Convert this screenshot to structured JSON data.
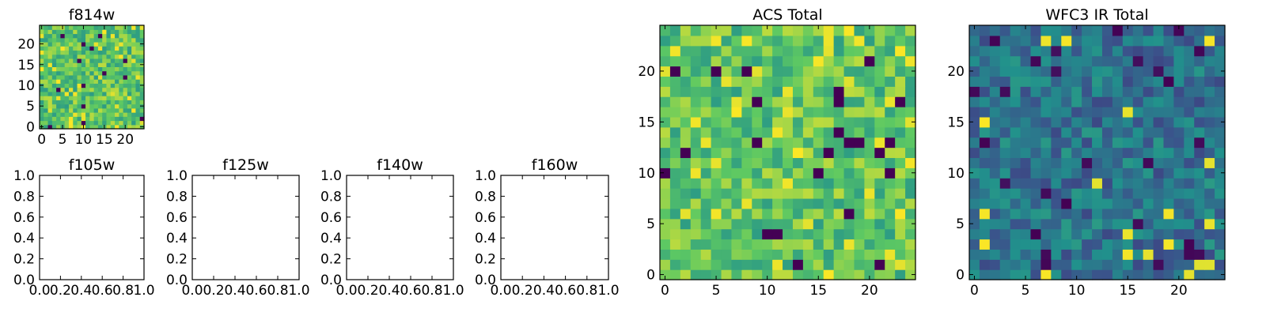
{
  "figure": {
    "background": "#ffffff",
    "heatmap_colormap": [
      "#440154",
      "#3b528b",
      "#21908c",
      "#5dc863",
      "#fde725"
    ]
  },
  "chart_data": [
    {
      "id": "f814w",
      "type": "heatmap",
      "title": "f814w",
      "grid_size": 25,
      "xlim": [
        -0.5,
        24.5
      ],
      "ylim": [
        -0.5,
        24.5
      ],
      "xticks": [
        0,
        5,
        10,
        15,
        20
      ],
      "yticks": [
        0,
        5,
        10,
        15,
        20
      ],
      "pattern": "bright",
      "seed": 814,
      "values": []
    },
    {
      "id": "f105w",
      "type": "empty",
      "title": "f105w",
      "xlim": [
        0,
        1
      ],
      "ylim": [
        0,
        1
      ],
      "xticks": [
        "0.0",
        "0.2",
        "0.4",
        "0.6",
        "0.8",
        "1.0"
      ],
      "yticks": [
        "0.0",
        "0.2",
        "0.4",
        "0.6",
        "0.8",
        "1.0"
      ]
    },
    {
      "id": "f125w",
      "type": "empty",
      "title": "f125w",
      "xlim": [
        0,
        1
      ],
      "ylim": [
        0,
        1
      ],
      "xticks": [
        "0.0",
        "0.2",
        "0.4",
        "0.6",
        "0.8",
        "1.0"
      ],
      "yticks": [
        "0.0",
        "0.2",
        "0.4",
        "0.6",
        "0.8",
        "1.0"
      ]
    },
    {
      "id": "f140w",
      "type": "empty",
      "title": "f140w",
      "xlim": [
        0,
        1
      ],
      "ylim": [
        0,
        1
      ],
      "xticks": [
        "0.0",
        "0.2",
        "0.4",
        "0.6",
        "0.8",
        "1.0"
      ],
      "yticks": [
        "0.0",
        "0.2",
        "0.4",
        "0.6",
        "0.8",
        "1.0"
      ]
    },
    {
      "id": "f160w",
      "type": "empty",
      "title": "f160w",
      "xlim": [
        0,
        1
      ],
      "ylim": [
        0,
        1
      ],
      "xticks": [
        "0.0",
        "0.2",
        "0.4",
        "0.6",
        "0.8",
        "1.0"
      ],
      "yticks": [
        "0.0",
        "0.2",
        "0.4",
        "0.6",
        "0.8",
        "1.0"
      ]
    },
    {
      "id": "acs-total",
      "type": "heatmap",
      "title": "ACS Total",
      "grid_size": 25,
      "xlim": [
        -0.5,
        24.5
      ],
      "ylim": [
        -0.5,
        24.5
      ],
      "xticks": [
        0,
        5,
        10,
        15,
        20
      ],
      "yticks": [
        0,
        5,
        10,
        15,
        20
      ],
      "pattern": "bright",
      "seed": 2718,
      "values": []
    },
    {
      "id": "wfc3-ir-total",
      "type": "heatmap",
      "title": "WFC3 IR Total",
      "grid_size": 25,
      "xlim": [
        -0.5,
        24.5
      ],
      "ylim": [
        -0.5,
        24.5
      ],
      "xticks": [
        0,
        5,
        10,
        15,
        20
      ],
      "yticks": [
        0,
        5,
        10,
        15,
        20
      ],
      "pattern": "dark",
      "seed": 3141,
      "values": []
    }
  ]
}
